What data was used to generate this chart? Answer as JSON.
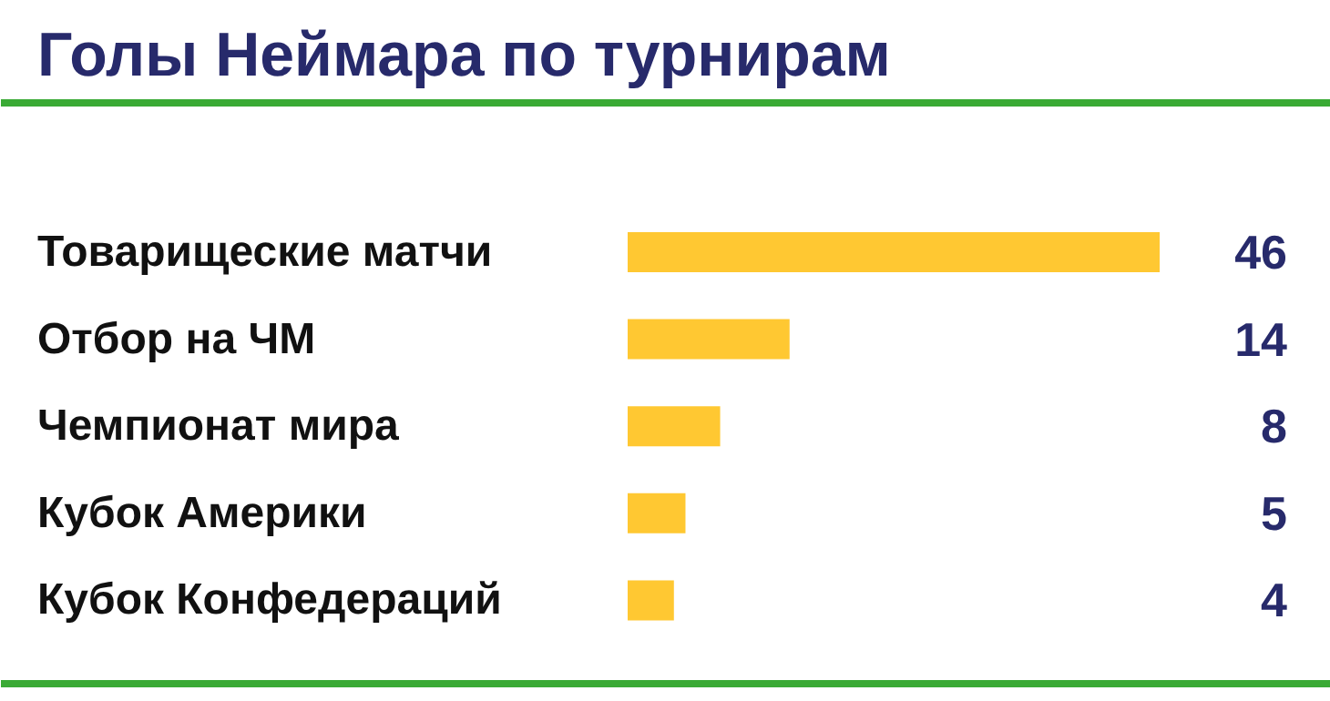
{
  "chart_data": {
    "type": "bar",
    "orientation": "horizontal",
    "title": "Голы Неймара по турнирам",
    "categories": [
      "Товарищеские матчи",
      "Отбор на ЧМ",
      "Чемпионат мира",
      "Кубок Америки",
      "Кубок Конфедераций"
    ],
    "values": [
      46,
      14,
      8,
      5,
      4
    ],
    "color": "#ffc832",
    "data_labels": true
  }
}
